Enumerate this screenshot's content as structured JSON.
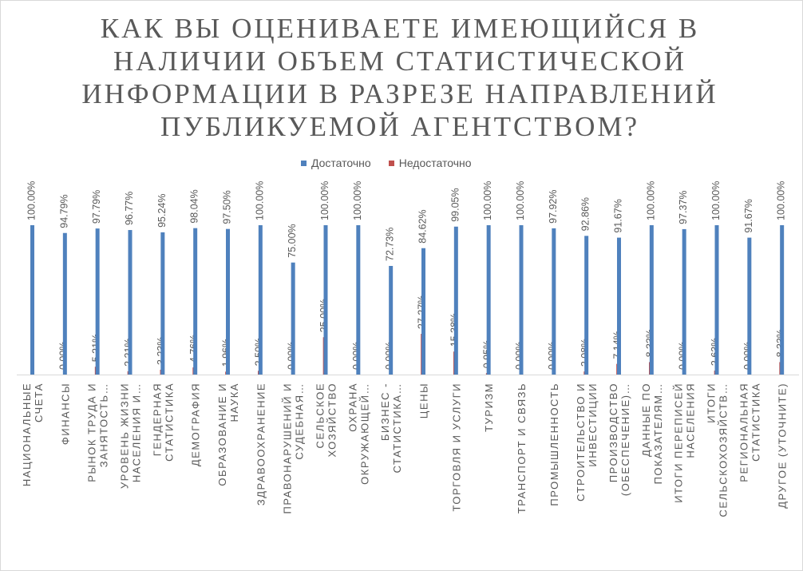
{
  "chart_data": {
    "type": "bar",
    "title": "КАК ВЫ ОЦЕНИВАЕТЕ ИМЕЮЩИЙСЯ В НАЛИЧИИ ОБЪЕМ СТАТИСТИЧЕСКОЙ ИНФОРМАЦИИ В РАЗРЕЗЕ НАПРАВЛЕНИЙ ПУБЛИКУЕМОЙ АГЕНТСТВОМ?",
    "legend_position": "top",
    "grid": false,
    "ylim": [
      0,
      100
    ],
    "categories": [
      [
        "НАЦИОНАЛЬНЫЕ",
        "СЧЕТА"
      ],
      [
        "ФИНАНСЫ"
      ],
      [
        "РЫНОК ТРУДА И",
        "ЗАНЯТОСТЬ…"
      ],
      [
        "УРОВЕНЬ ЖИЗНИ",
        "НАСЕЛЕНИЯ И…"
      ],
      [
        "ГЕНДЕРНАЯ",
        "СТАТИСТИКА"
      ],
      [
        "ДЕМОГРАФИЯ"
      ],
      [
        "ОБРАЗОВАНИЕ И",
        "НАУКА"
      ],
      [
        "ЗДРАВООХРАНЕНИЕ"
      ],
      [
        "ПРАВОНАРУШЕНИЙ И",
        "СУДЕБНАЯ…"
      ],
      [
        "СЕЛЬСКОЕ",
        "ХОЗЯЙСТВО"
      ],
      [
        "ОХРАНА",
        "ОКРУЖАЮЩЕЙ…"
      ],
      [
        "БИЗНЕС -",
        "СТАТИСТИКА…"
      ],
      [
        "ЦЕНЫ"
      ],
      [
        "ТОРГОВЛЯ И УСЛУГИ"
      ],
      [
        "ТУРИЗМ"
      ],
      [
        "ТРАНСПОРТ И СВЯЗЬ"
      ],
      [
        "ПРОМЫШЛЕННОСТЬ"
      ],
      [
        "СТРОИТЕЛЬСТВО И",
        "ИНВЕСТИЦИИ"
      ],
      [
        "ПРОИЗВОДСТВО",
        "(ОБЕСПЕЧЕНИЕ)…"
      ],
      [
        "ДАННЫЕ ПО",
        "ПОКАЗАТЕЛЯМ…"
      ],
      [
        "ИТОГИ ПЕРЕПИСЕЙ",
        "НАСЕЛЕНИЯ"
      ],
      [
        "ИТОГИ",
        "СЕЛЬСКОХОЗЯЙСТВ…"
      ],
      [
        "РЕГИОНАЛЬНАЯ",
        "СТАТИСТИКА"
      ],
      [
        "ДРУГОЕ (УТОЧНИТЕ)"
      ]
    ],
    "series": [
      {
        "name": "Достаточно",
        "color": "#4f81bd",
        "values": [
          100,
          94.79,
          97.79,
          96.77,
          95.24,
          98.04,
          97.5,
          100,
          75,
          100,
          100,
          72.73,
          84.62,
          99.05,
          100,
          100,
          97.92,
          92.86,
          91.67,
          100,
          97.37,
          100,
          91.67,
          100
        ],
        "labels": [
          "100.00%",
          "94.79%",
          "97.79%",
          "96.77%",
          "95.24%",
          "98.04%",
          "97.50%",
          "100.00%",
          "75.00%",
          "100.00%",
          "100.00%",
          "72.73%",
          "84.62%",
          "99.05%",
          "100.00%",
          "100.00%",
          "97.92%",
          "92.86%",
          "91.67%",
          "100.00%",
          "97.37%",
          "100.00%",
          "91.67%",
          "100.00%"
        ]
      },
      {
        "name": "Недостаточно",
        "color": "#c0504d",
        "values": [
          0,
          5.21,
          2.21,
          3.23,
          4.76,
          1.96,
          2.5,
          0,
          25,
          0,
          0,
          27.27,
          15.38,
          0.95,
          0,
          0,
          2.08,
          7.14,
          8.33,
          0,
          2.63,
          0,
          8.33,
          0
        ],
        "labels": [
          "0.00%",
          "5.21%",
          "2.21%",
          "3.23%",
          "4.76%",
          "1.96%",
          "2.50%",
          "0.00%",
          "25.00%",
          "0.00%",
          "0.00%",
          "27.27%",
          "15.38%",
          "0.95%",
          "0.00%",
          "0.00%",
          "2.08%",
          "7.14%",
          "8.33%",
          "0.00%",
          "2.63%",
          "0.00%",
          "8.33%",
          "0.00%"
        ]
      }
    ],
    "colors": {
      "axis": "#d9d9d9",
      "text": "#595959"
    }
  }
}
